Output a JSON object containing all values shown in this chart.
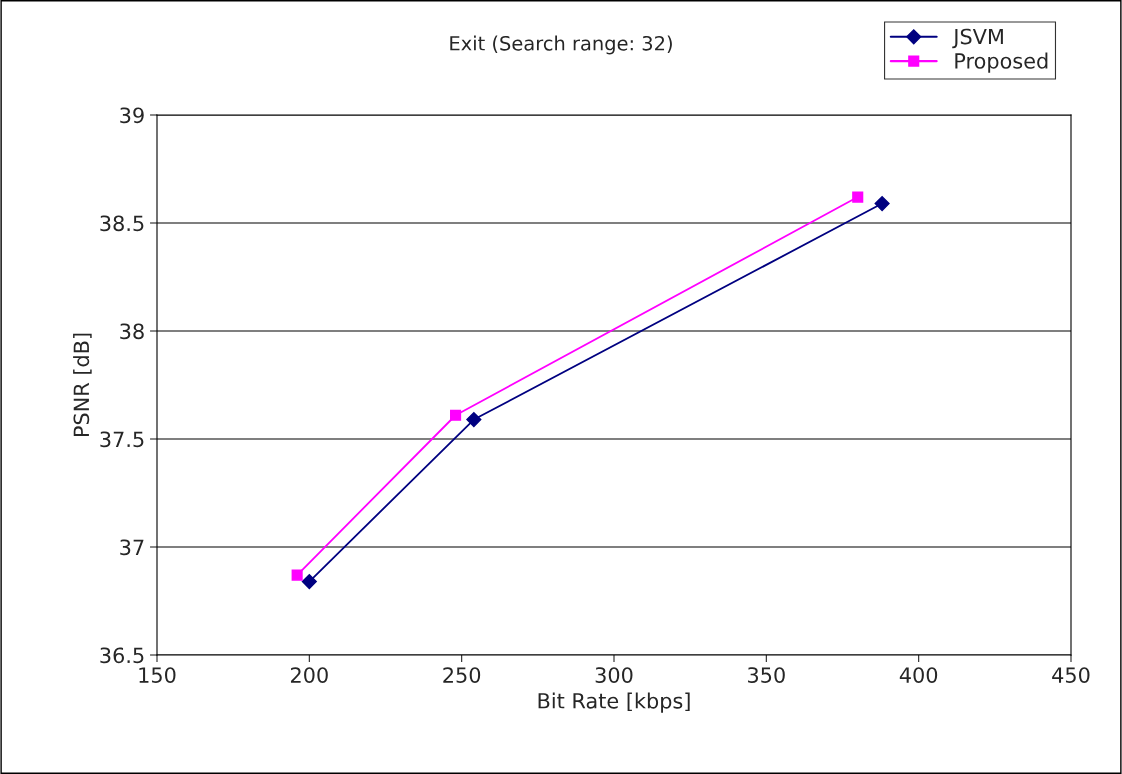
{
  "chart_data": {
    "type": "line",
    "title": "Exit (Search range: 32)",
    "xlabel": "Bit Rate [kbps]",
    "ylabel": "PSNR [dB]",
    "series": [
      {
        "name": "JSVM",
        "color": "#000080",
        "marker": "diamond",
        "x": [
          200,
          254,
          388
        ],
        "values": [
          36.84,
          37.59,
          38.59
        ]
      },
      {
        "name": "Proposed",
        "color": "#ff00ff",
        "marker": "square",
        "x": [
          196,
          248,
          380
        ],
        "values": [
          36.87,
          37.61,
          38.62
        ]
      }
    ],
    "xlim": [
      150,
      450
    ],
    "xticks": [
      150,
      200,
      250,
      300,
      350,
      400,
      450
    ],
    "ylim": [
      36.5,
      39
    ],
    "yticks": [
      36.5,
      37,
      37.5,
      38,
      38.5,
      39
    ],
    "grid": "y",
    "legend": "top right",
    "line_style": "solid"
  }
}
